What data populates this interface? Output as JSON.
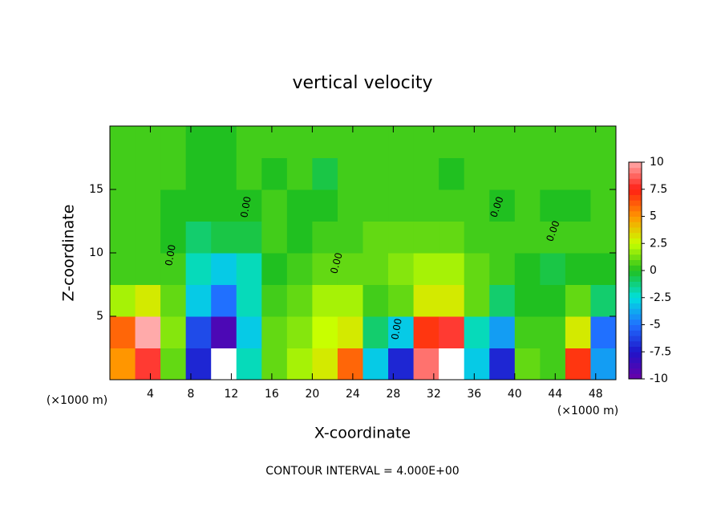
{
  "chart_data": {
    "type": "heatmap",
    "title": "vertical velocity",
    "xlabel": "X-coordinate",
    "ylabel": "Z-coordinate",
    "x_unit": "(×1000 m)",
    "note": "CONTOUR INTERVAL = 4.000E+00",
    "contour_label": "0.00",
    "x": [
      1.25,
      3.75,
      6.25,
      8.75,
      11.25,
      13.75,
      16.25,
      18.75,
      21.25,
      23.75,
      26.25,
      28.75,
      31.25,
      33.75,
      36.25,
      38.75,
      41.25,
      43.75,
      46.25,
      48.75
    ],
    "y": [
      1.25,
      3.75,
      6.25,
      8.75,
      11.25,
      13.75,
      16.25,
      18.75
    ],
    "z": [
      [
        5,
        8,
        1,
        -7,
        -11,
        -2,
        1,
        2,
        3,
        6,
        -3,
        -7,
        9,
        11,
        -3,
        -7,
        1,
        0.5,
        7,
        -4
      ],
      [
        6,
        10,
        1.5,
        -6,
        -9,
        -3,
        1,
        1.5,
        2.5,
        3,
        -1,
        -3,
        7,
        8,
        -2,
        -4,
        0.5,
        0.5,
        3,
        -5
      ],
      [
        2,
        3,
        1,
        -3,
        -5,
        -2,
        0.5,
        1,
        2,
        2,
        0.5,
        1,
        3,
        3,
        1,
        -1,
        0,
        0,
        1,
        -1
      ],
      [
        0.5,
        0.5,
        0.5,
        -2,
        -3,
        -2,
        0,
        0.5,
        1,
        1,
        1,
        1.5,
        2,
        2,
        1,
        0.5,
        0,
        -0.5,
        0,
        0
      ],
      [
        0.5,
        0.5,
        0,
        -1,
        -0.5,
        -0.5,
        0.5,
        0,
        0.5,
        0.5,
        1,
        1,
        1,
        1,
        0.5,
        0.5,
        0.5,
        0.5,
        0.5,
        0.5
      ],
      [
        0.5,
        0.5,
        0,
        0,
        0,
        0,
        0.5,
        0,
        0,
        0.5,
        0.5,
        0.5,
        0.5,
        0.5,
        0.5,
        0,
        0.5,
        0,
        0,
        0.5
      ],
      [
        0.5,
        0.5,
        0.5,
        0,
        0,
        0.5,
        0,
        0.5,
        -0.5,
        0.5,
        0.5,
        0.5,
        0.5,
        0,
        0.5,
        0.5,
        0.5,
        0.5,
        0.5,
        0.5
      ],
      [
        0.5,
        0.5,
        0.5,
        0,
        0,
        0.5,
        0.5,
        0.5,
        0.5,
        0.5,
        0.5,
        0.5,
        0.5,
        0.5,
        0.5,
        0.5,
        0.5,
        0.5,
        0.5,
        0.5
      ]
    ],
    "xlim": [
      0,
      50
    ],
    "ylim": [
      0,
      20
    ],
    "xticks": [
      4,
      8,
      12,
      16,
      20,
      24,
      28,
      32,
      36,
      40,
      44,
      48
    ],
    "yticks": [
      5,
      10,
      15
    ],
    "clim": [
      -10,
      10
    ],
    "cticks": [
      10,
      7.5,
      5,
      2.5,
      0,
      -2.5,
      -5,
      -7.5,
      -10
    ]
  }
}
